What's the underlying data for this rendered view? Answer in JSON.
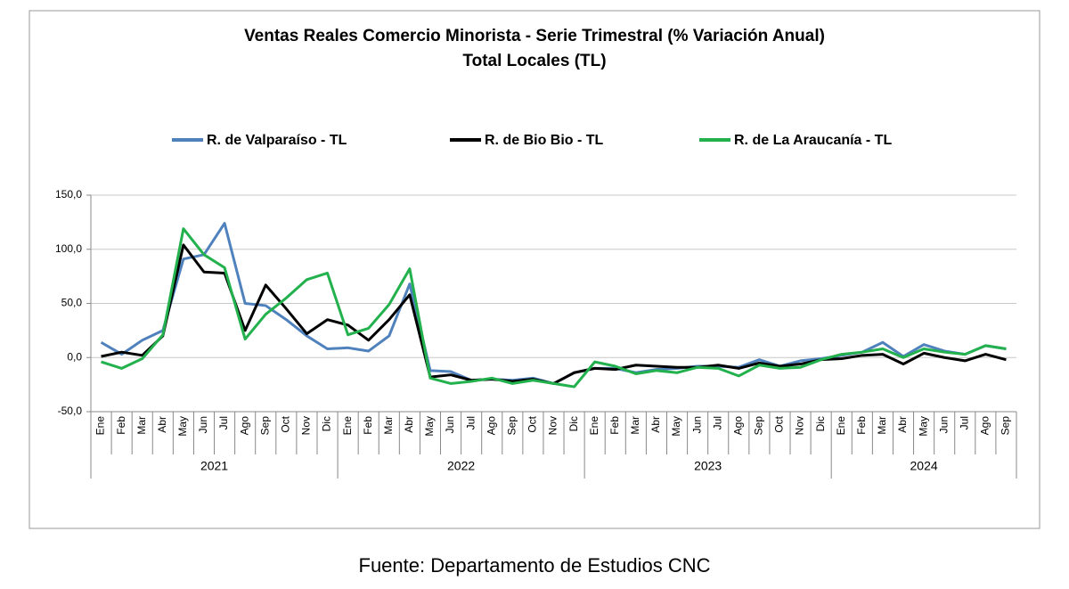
{
  "chart_data": {
    "type": "line",
    "title": "Ventas Reales Comercio Minorista - Serie Trimestral (% Variación Anual)",
    "subtitle": "Total Locales (TL)",
    "source": "Fuente: Departamento de Estudios CNC",
    "categories": [
      "Ene",
      "Feb",
      "Mar",
      "Abr",
      "May",
      "Jun",
      "Jul",
      "Ago",
      "Sep",
      "Oct",
      "Nov",
      "Dic",
      "Ene",
      "Feb",
      "Mar",
      "Abr",
      "May",
      "Jun",
      "Jul",
      "Ago",
      "Sep",
      "Oct",
      "Nov",
      "Dic",
      "Ene",
      "Feb",
      "Mar",
      "Abr",
      "May",
      "Jun",
      "Jul",
      "Ago",
      "Sep",
      "Oct",
      "Nov",
      "Dic",
      "Ene",
      "Feb",
      "Mar",
      "Abr",
      "May",
      "Jun",
      "Jul",
      "Ago",
      "Sep"
    ],
    "year_groups": [
      "2021",
      "2022",
      "2023",
      "2024"
    ],
    "series": [
      {
        "name": "R. de Valparaíso - TL",
        "color": "#4f81bd",
        "values": [
          14,
          3,
          16,
          25,
          91,
          95,
          124,
          50,
          48,
          35,
          20,
          8,
          9,
          6,
          20,
          68,
          -12,
          -13,
          -21,
          -20,
          -21,
          -19,
          -24,
          -14,
          -10,
          -10,
          -14,
          -11,
          -10,
          -8,
          -8,
          -9,
          -2,
          -8,
          -3,
          -1,
          2,
          5,
          14,
          1,
          12,
          6,
          3,
          11,
          8
        ]
      },
      {
        "name": "R. de Bio Bio - TL",
        "color": "#000000",
        "values": [
          1,
          5,
          2,
          20,
          104,
          79,
          78,
          25,
          67,
          45,
          22,
          35,
          30,
          16,
          35,
          58,
          -18,
          -16,
          -21,
          -20,
          -22,
          -20,
          -24,
          -14,
          -10,
          -11,
          -7,
          -8,
          -9,
          -9,
          -7,
          -10,
          -5,
          -8,
          -6,
          -2,
          -1,
          2,
          3,
          -6,
          4,
          0,
          -3,
          3,
          -2
        ]
      },
      {
        "name": "R. de La Araucanía - TL",
        "color": "#22b14c",
        "values": [
          -4,
          -10,
          -1,
          21,
          119,
          95,
          83,
          17,
          40,
          55,
          72,
          78,
          21,
          27,
          49,
          82,
          -19,
          -24,
          -22,
          -19,
          -24,
          -21,
          -24,
          -27,
          -4,
          -8,
          -15,
          -12,
          -14,
          -9,
          -10,
          -17,
          -7,
          -10,
          -9,
          -2,
          3,
          5,
          8,
          0,
          8,
          5,
          3,
          11,
          8
        ]
      }
    ],
    "ylim": [
      -50,
      150
    ],
    "yticks": [
      {
        "value": -50,
        "label": "-50,0"
      },
      {
        "value": 0,
        "label": "0,0"
      },
      {
        "value": 50,
        "label": "50,0"
      },
      {
        "value": 100,
        "label": "100,0"
      },
      {
        "value": 150,
        "label": "150,0"
      }
    ],
    "grid": true,
    "legend": "top"
  }
}
